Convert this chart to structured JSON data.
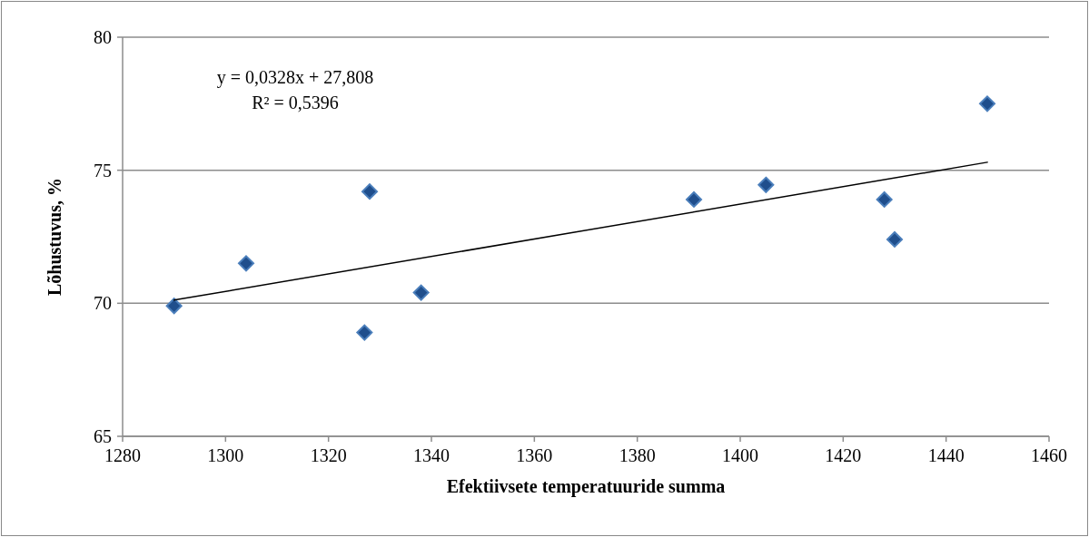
{
  "chart_data": {
    "type": "scatter",
    "xlabel": "Efektiivsete temperatuuride summa",
    "ylabel": "Lõhustuvus, %",
    "annotations": [
      "y = 0,0328x + 27,808",
      "R² = 0,5396"
    ],
    "series": [
      {
        "color": "#1f4e8c",
        "marker": "diamond",
        "x": [
          1290,
          1304,
          1328,
          1327,
          1338,
          1391,
          1405,
          1428,
          1430,
          1448
        ],
        "values": [
          69.9,
          71.5,
          74.2,
          68.9,
          70.4,
          73.9,
          74.45,
          73.9,
          72.4,
          77.5
        ]
      },
      {
        "type": "line",
        "color": "#000000",
        "marker": "none",
        "x": [
          1290,
          1448
        ],
        "values": [
          70.12,
          75.3
        ]
      }
    ],
    "xlim": [
      1280,
      1460
    ],
    "xticks": [
      1280,
      1300,
      1320,
      1340,
      1360,
      1380,
      1400,
      1420,
      1440,
      1460
    ],
    "ylim": [
      65,
      80
    ],
    "yticks": [
      65,
      70,
      75,
      80
    ],
    "grid": "y"
  }
}
